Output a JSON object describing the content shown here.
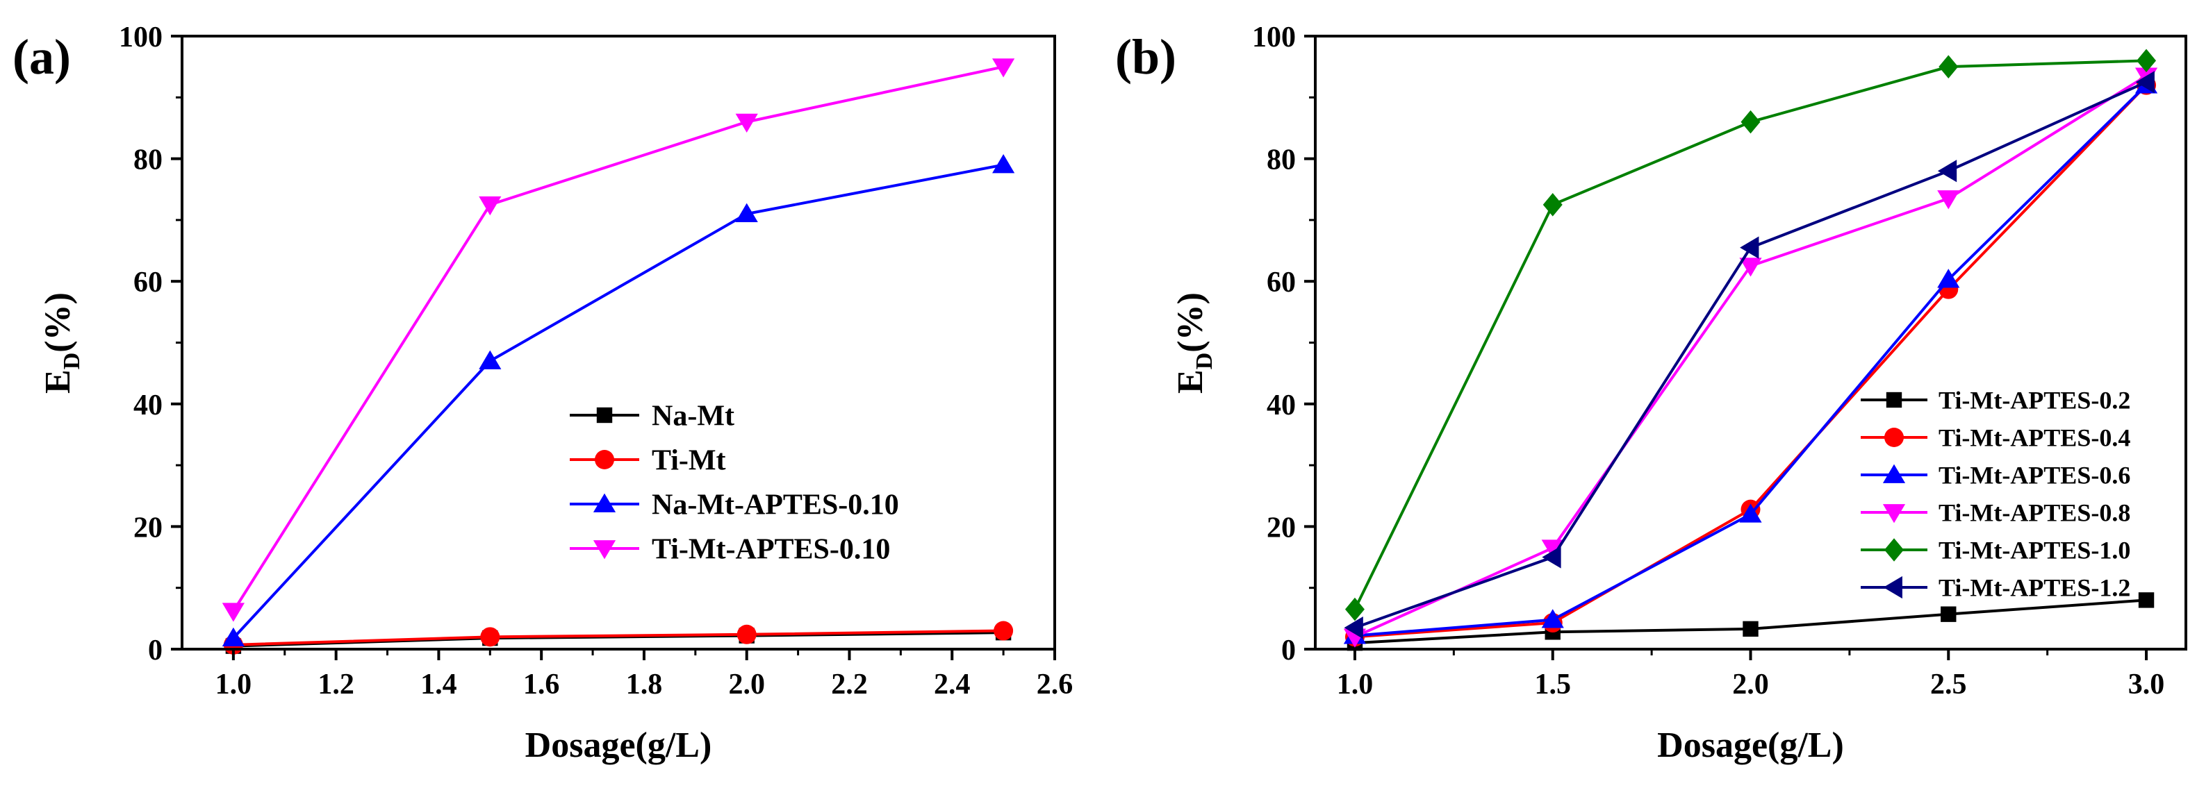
{
  "chart_data": [
    {
      "panel_label": "(a)",
      "type": "line",
      "xlabel": "Dosage(g/L)",
      "ylabel_main": "E",
      "ylabel_sub": "D",
      "ylabel_tail": "(%)",
      "xlim": [
        0.9,
        2.6
      ],
      "ylim": [
        0,
        100
      ],
      "xticks": [
        1.0,
        1.2,
        1.4,
        1.6,
        1.8,
        2.0,
        2.2,
        2.4,
        2.6
      ],
      "xtick_labels": [
        "1.0",
        "1.2",
        "1.4",
        "1.6",
        "1.8",
        "2.0",
        "2.2",
        "2.4",
        "2.6"
      ],
      "yticks": [
        0,
        20,
        40,
        60,
        80,
        100
      ],
      "ytick_labels": [
        "0",
        "20",
        "40",
        "60",
        "80",
        "100"
      ],
      "legend_position": "center-right",
      "x": [
        1.0,
        1.5,
        2.0,
        2.5
      ],
      "series": [
        {
          "name": "Na-Mt",
          "color": "#000000",
          "marker": "square",
          "values": [
            0.5,
            1.8,
            2.2,
            2.7
          ]
        },
        {
          "name": "Ti-Mt",
          "color": "#ff0000",
          "marker": "circle",
          "values": [
            0.7,
            2.0,
            2.4,
            3.0
          ]
        },
        {
          "name": "Na-Mt-APTES-0.10",
          "color": "#0000ff",
          "marker": "triangle-up",
          "values": [
            1.8,
            47.0,
            71.0,
            79.0
          ]
        },
        {
          "name": "Ti-Mt-APTES-0.10",
          "color": "#ff00ff",
          "marker": "triangle-down",
          "values": [
            6.2,
            72.5,
            86.0,
            95.0
          ]
        }
      ]
    },
    {
      "panel_label": "(b)",
      "type": "line",
      "xlabel": "Dosage(g/L)",
      "ylabel_main": "E",
      "ylabel_sub": "D",
      "ylabel_tail": "(%)",
      "xlim": [
        0.9,
        3.1
      ],
      "ylim": [
        0,
        100
      ],
      "xticks": [
        1.0,
        1.5,
        2.0,
        2.5,
        3.0
      ],
      "xtick_labels": [
        "1.0",
        "1.5",
        "2.0",
        "2.5",
        "3.0"
      ],
      "yticks": [
        0,
        20,
        40,
        60,
        80,
        100
      ],
      "ytick_labels": [
        "0",
        "20",
        "40",
        "60",
        "80",
        "100"
      ],
      "legend_position": "bottom-right",
      "x": [
        1.0,
        1.5,
        2.0,
        2.5,
        3.0
      ],
      "series": [
        {
          "name": "Ti-Mt-APTES-0.2",
          "color": "#000000",
          "marker": "square",
          "values": [
            1.0,
            2.8,
            3.3,
            5.7,
            8.0
          ]
        },
        {
          "name": "Ti-Mt-APTES-0.4",
          "color": "#ff0000",
          "marker": "circle",
          "values": [
            2.0,
            4.3,
            22.8,
            58.7,
            92.0
          ]
        },
        {
          "name": "Ti-Mt-APTES-0.6",
          "color": "#0000ff",
          "marker": "triangle-up",
          "values": [
            2.2,
            4.8,
            22.0,
            60.3,
            92.0
          ]
        },
        {
          "name": "Ti-Mt-APTES-0.8",
          "color": "#ff00ff",
          "marker": "triangle-down",
          "values": [
            2.0,
            16.5,
            62.5,
            73.5,
            93.5
          ]
        },
        {
          "name": "Ti-Mt-APTES-1.0",
          "color": "#008000",
          "marker": "diamond",
          "values": [
            6.5,
            72.5,
            86.0,
            95.0,
            96.0
          ]
        },
        {
          "name": "Ti-Mt-APTES-1.2",
          "color": "#000080",
          "marker": "triangle-left",
          "values": [
            3.5,
            15.0,
            65.5,
            78.0,
            92.5
          ]
        }
      ]
    }
  ]
}
